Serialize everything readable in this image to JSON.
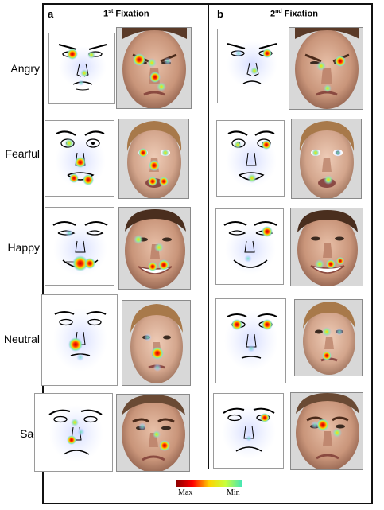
{
  "panels": {
    "a": {
      "letter": "a",
      "title_main": "1",
      "title_sup": "st",
      "title_rest": " Fixation"
    },
    "b": {
      "letter": "b",
      "title_main": "2",
      "title_sup": "nd",
      "title_rest": "  Fixation"
    }
  },
  "rows": [
    {
      "label": "Angry"
    },
    {
      "label": "Fearful"
    },
    {
      "label": "Happy"
    },
    {
      "label": "Neutral"
    },
    {
      "label": "Sad"
    }
  ],
  "legend": {
    "min_label": "Min",
    "max_label": "Max"
  },
  "colors": {
    "hot": "#e60000",
    "warm": "#ffd200",
    "cool": "#64dcb4",
    "faint": "#a0b4ff"
  }
}
